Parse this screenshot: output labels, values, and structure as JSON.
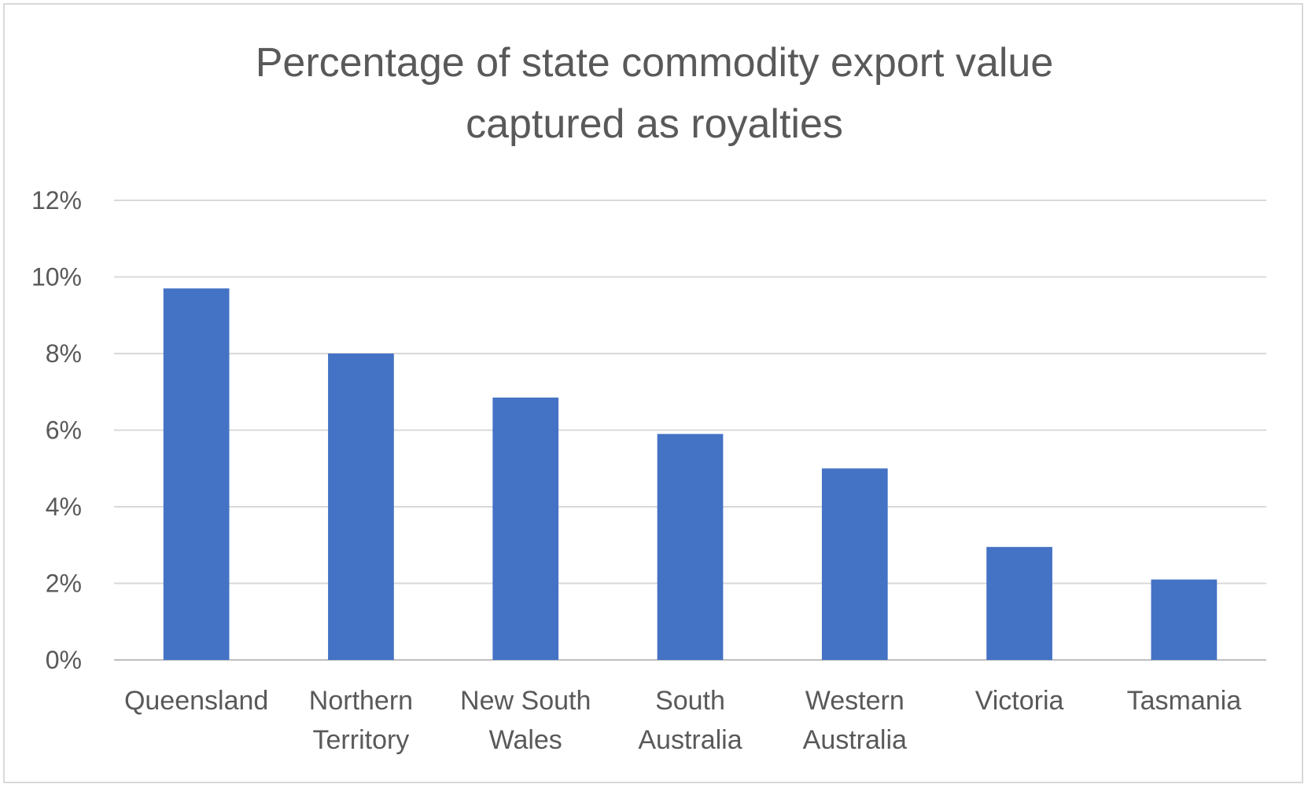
{
  "chart_data": {
    "type": "bar",
    "title_lines": [
      "Percentage of state commodity export value",
      "captured as royalties"
    ],
    "categories": [
      [
        "Queensland"
      ],
      [
        "Northern",
        "Territory"
      ],
      [
        "New South",
        "Wales"
      ],
      [
        "South",
        "Australia"
      ],
      [
        "Western",
        "Australia"
      ],
      [
        "Victoria"
      ],
      [
        "Tasmania"
      ]
    ],
    "values": [
      9.7,
      8.0,
      6.85,
      5.9,
      5.0,
      2.95,
      2.1
    ],
    "ylim": [
      0,
      12
    ],
    "ytick_values": [
      0,
      2,
      4,
      6,
      8,
      10,
      12
    ],
    "ytick_labels": [
      "0%",
      "2%",
      "4%",
      "6%",
      "8%",
      "10%",
      "12%"
    ],
    "xlabel": "",
    "ylabel": "",
    "grid": true,
    "legend": "none",
    "bar_color": "#4472c4",
    "grid_color": "#d9d9d9",
    "text_color": "#595959"
  }
}
